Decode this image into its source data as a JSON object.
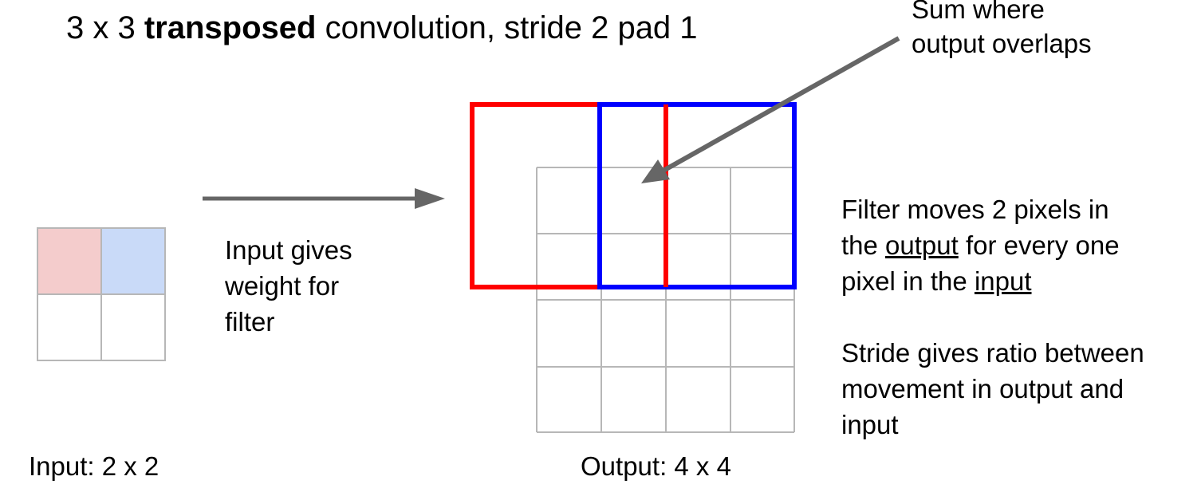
{
  "title": {
    "prefix": "3 x 3 ",
    "bold": "transposed",
    "suffix": " convolution, stride 2 pad 1"
  },
  "callout": {
    "lines": [
      "Sum where",
      "output overlaps"
    ]
  },
  "input_note": {
    "lines": [
      "Input gives",
      "weight for",
      "filter"
    ]
  },
  "filter_note": {
    "line1": "Filter moves 2 pixels in",
    "line2_pre": "the ",
    "line2_u": "output",
    "line2_post": " for every one",
    "line3_pre": "pixel in the ",
    "line3_u": "input"
  },
  "stride_note": {
    "lines": [
      "Stride gives ratio between",
      "movement in output and",
      "input"
    ]
  },
  "labels": {
    "input": "Input: 2 x 2",
    "output": "Output: 4 x 4"
  },
  "input_grid": {
    "rows": 2,
    "cols": 2,
    "cell_fills": [
      [
        "#f4cccc",
        "#c9daf8"
      ],
      [
        "#ffffff",
        "#ffffff"
      ]
    ]
  },
  "output_grid": {
    "rows": 4,
    "cols": 4
  },
  "filters": [
    {
      "name": "red-filter",
      "color": "#ff0000",
      "input_cell": [
        0,
        0
      ]
    },
    {
      "name": "blue-filter",
      "color": "#0000ff",
      "input_cell": [
        0,
        1
      ]
    }
  ],
  "colors": {
    "grid": "#b7b7b7",
    "arrow": "#666666",
    "text": "#000000"
  }
}
